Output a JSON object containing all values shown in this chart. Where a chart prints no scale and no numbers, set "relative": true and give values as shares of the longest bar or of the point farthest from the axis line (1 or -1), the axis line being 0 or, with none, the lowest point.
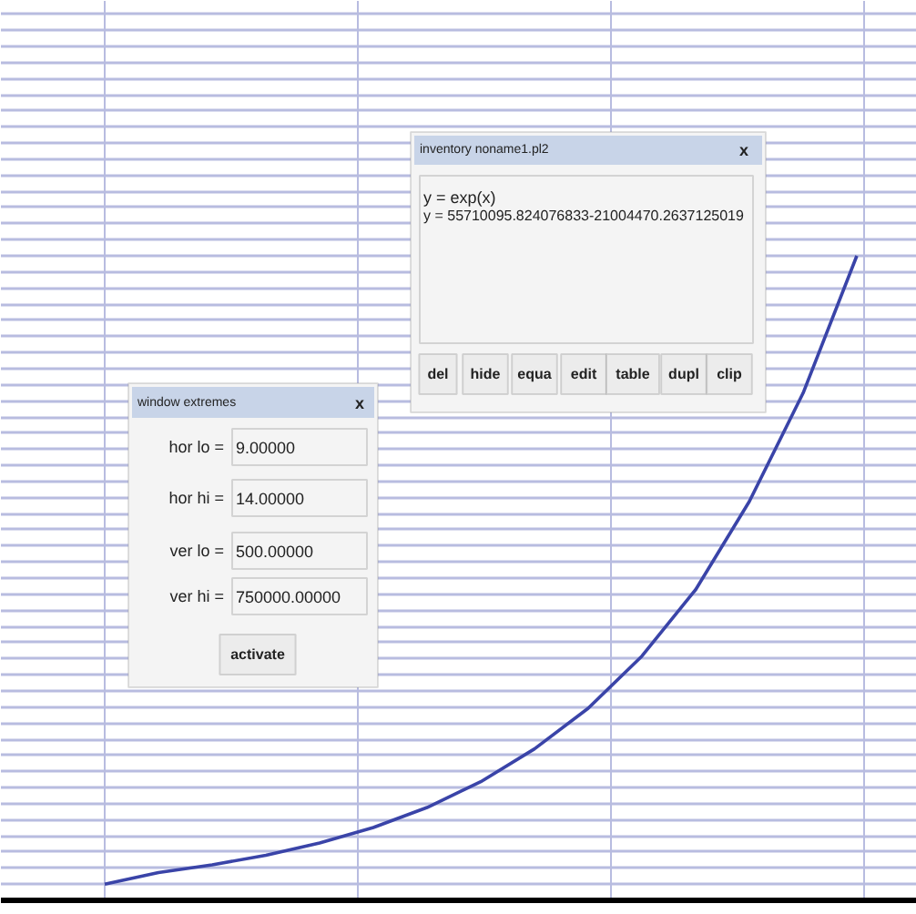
{
  "chart_data": {
    "type": "line",
    "relative": true,
    "grid": true,
    "marker": "none",
    "line_style": "solid",
    "categories": [
      null,
      null,
      null,
      null,
      null,
      null,
      null,
      null,
      null,
      null,
      null,
      null,
      null,
      null,
      null
    ],
    "series": [
      {
        "color": "#3a44a8",
        "values": [
          0.025,
          0.043,
          0.055,
          0.07,
          0.089,
          0.113,
          0.144,
          0.184,
          0.235,
          0.298,
          0.379,
          0.482,
          0.619,
          0.787,
          1
        ]
      }
    ],
    "annotations": [
      "inventory noname1.pl2",
      "x",
      "y = exp(x)",
      "y = 55710095.824076833-21004470.2637125019",
      "del",
      "hide",
      "equa",
      "edit",
      "table",
      "dupl",
      "clip",
      "window extremes",
      "x",
      "hor lo = ",
      "9.00000",
      "hor hi = ",
      "14.00000",
      "ver lo = ",
      "500.00000",
      "ver hi = ",
      "750000.00000",
      "activate"
    ]
  }
}
